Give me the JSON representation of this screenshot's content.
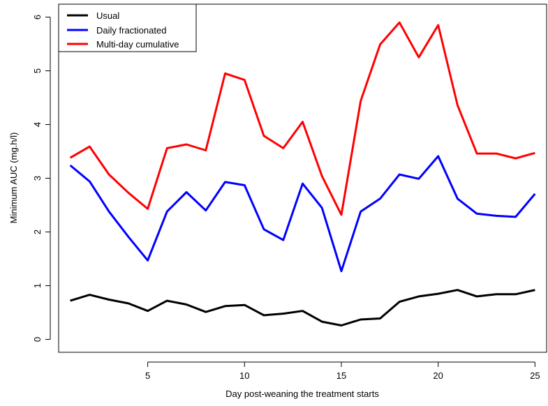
{
  "chart_data": {
    "type": "line",
    "xlabel": "Day post-weaning the treatment starts",
    "ylabel": "Minimum AUC (mg.h/l)",
    "xlim": [
      0.4,
      25.6
    ],
    "ylim": [
      -0.24,
      6.24
    ],
    "x_ticks": [
      5,
      10,
      15,
      20,
      25
    ],
    "y_ticks": [
      0,
      1,
      2,
      3,
      4,
      5,
      6
    ],
    "grid": false,
    "legend_position": "top-left",
    "x": [
      1,
      2,
      3,
      4,
      5,
      6,
      7,
      8,
      9,
      10,
      11,
      12,
      13,
      14,
      15,
      16,
      17,
      18,
      19,
      20,
      21,
      22,
      23,
      24,
      25
    ],
    "series": [
      {
        "name": "Usual",
        "color": "#000000",
        "values": [
          0.72,
          0.83,
          0.74,
          0.67,
          0.53,
          0.72,
          0.65,
          0.51,
          0.62,
          0.64,
          0.45,
          0.48,
          0.53,
          0.33,
          0.26,
          0.37,
          0.39,
          0.7,
          0.8,
          0.85,
          0.92,
          0.8,
          0.84,
          0.84,
          0.92
        ]
      },
      {
        "name": "Daily fractionated",
        "color": "#0000ff",
        "values": [
          3.24,
          2.94,
          2.38,
          1.91,
          1.47,
          2.38,
          2.74,
          2.4,
          2.93,
          2.87,
          2.05,
          1.85,
          2.9,
          2.45,
          1.27,
          2.38,
          2.62,
          3.07,
          2.99,
          3.41,
          2.62,
          2.34,
          2.3,
          2.28,
          2.71
        ]
      },
      {
        "name": "Multi-day cumulative",
        "color": "#ff0000",
        "values": [
          3.38,
          3.59,
          3.07,
          2.73,
          2.43,
          3.56,
          3.63,
          3.52,
          4.95,
          4.83,
          3.79,
          3.56,
          4.05,
          3.04,
          2.32,
          4.44,
          5.49,
          5.9,
          5.25,
          5.85,
          4.36,
          3.46,
          3.46,
          3.37,
          3.47
        ]
      }
    ]
  }
}
